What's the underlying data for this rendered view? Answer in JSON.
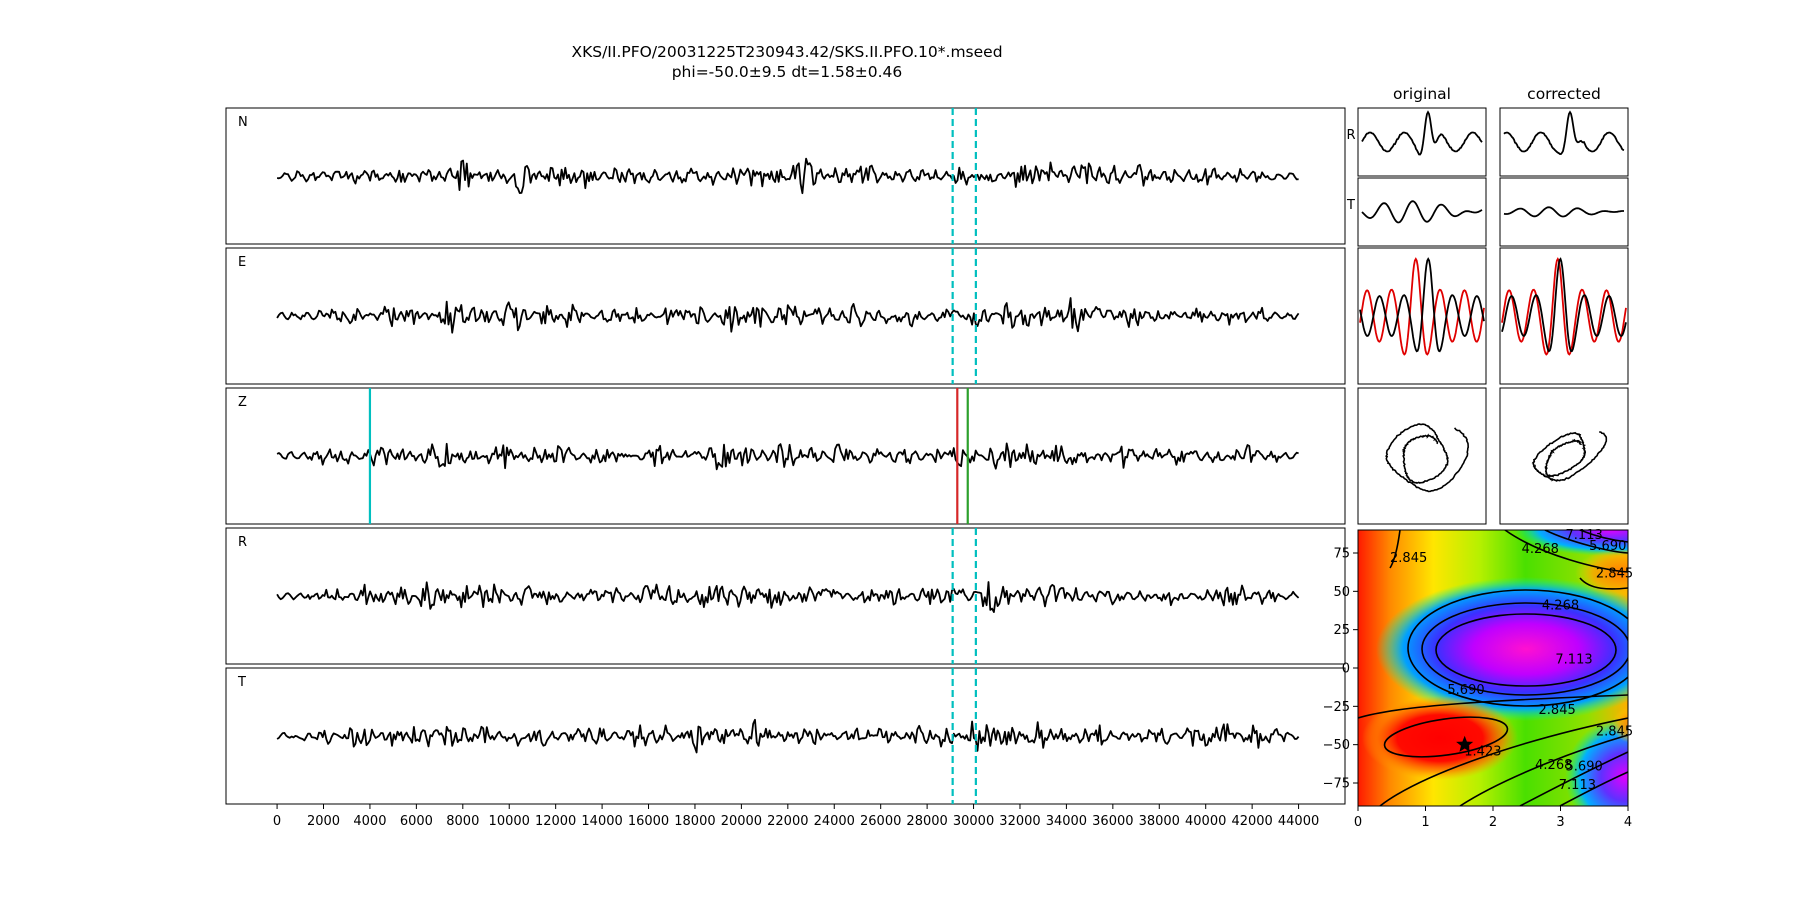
{
  "figure": {
    "title_line1": "XKS/II.PFO/20031225T230943.42/SKS.II.PFO.10*.mseed",
    "title_line2": "phi=-50.0±9.5 dt=1.58±0.46",
    "col_original": "original",
    "col_corrected": "corrected",
    "small_label_r": "R",
    "small_label_t": "T"
  },
  "chart_data": [
    {
      "type": "line",
      "name": "waveforms",
      "panels": [
        "N",
        "E",
        "Z",
        "R",
        "T"
      ],
      "xlim": [
        -2200,
        46000
      ],
      "xticks": [
        0,
        2000,
        4000,
        6000,
        8000,
        10000,
        12000,
        14000,
        16000,
        18000,
        20000,
        22000,
        24000,
        26000,
        28000,
        30000,
        32000,
        34000,
        36000,
        38000,
        40000,
        42000,
        44000
      ],
      "x_start": 0,
      "x_end": 44000,
      "window_start": 29100,
      "window_end": 30100,
      "window_color": "#00bfbf",
      "z_markers": [
        {
          "x": 4000,
          "color": "#00bfbf"
        },
        {
          "x": 29300,
          "color": "#d62728"
        },
        {
          "x": 29750,
          "color": "#2ca02c"
        }
      ]
    },
    {
      "type": "heatmap",
      "name": "splitting-grid",
      "xlim": [
        0,
        4
      ],
      "ylim": [
        -90,
        90
      ],
      "xticks": [
        0,
        1,
        2,
        3,
        4
      ],
      "yticks": [
        -75,
        -50,
        -25,
        0,
        25,
        50,
        75
      ],
      "best": {
        "dt": 1.58,
        "phi": -50
      },
      "contour_labels": [
        {
          "text": "2.845",
          "x": 0.75,
          "y": 72
        },
        {
          "text": "4.268",
          "x": 2.7,
          "y": 78
        },
        {
          "text": "7.113",
          "x": 3.35,
          "y": 87
        },
        {
          "text": "5.690",
          "x": 3.7,
          "y": 80
        },
        {
          "text": "2.845",
          "x": 3.8,
          "y": 62
        },
        {
          "text": "4.268",
          "x": 3.0,
          "y": 41
        },
        {
          "text": "7.113",
          "x": 3.2,
          "y": 6
        },
        {
          "text": "5.690",
          "x": 1.6,
          "y": -14
        },
        {
          "text": "2.845",
          "x": 2.95,
          "y": -27
        },
        {
          "text": "1.423",
          "x": 1.85,
          "y": -54
        },
        {
          "text": "2.845",
          "x": 3.8,
          "y": -41
        },
        {
          "text": "4.268",
          "x": 2.9,
          "y": -63
        },
        {
          "text": "5.690",
          "x": 3.35,
          "y": -64
        },
        {
          "text": "7.113",
          "x": 3.25,
          "y": -76
        }
      ]
    }
  ]
}
